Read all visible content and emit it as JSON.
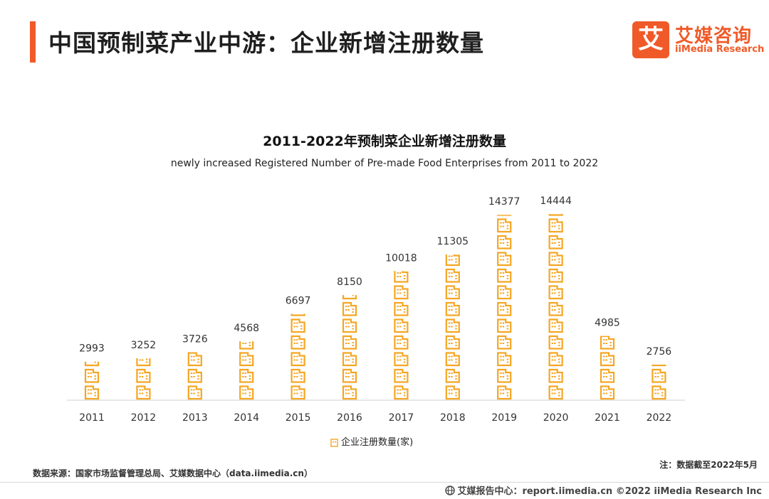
{
  "header": {
    "title": "中国预制菜产业中游：企业新增注册数量",
    "logo_mark": "艾",
    "logo_cn": "艾媒咨询",
    "logo_en": "iiMedia Research"
  },
  "colors": {
    "accent": "#f05a28",
    "bar": "#f5a623",
    "axis": "#cfcfcf"
  },
  "chart_data": {
    "type": "bar",
    "title": "2011-2022年预制菜企业新增注册数量",
    "subtitle": "newly increased Registered Number of Pre-made Food Enterprises from 2011 to 2022",
    "categories": [
      "2011",
      "2012",
      "2013",
      "2014",
      "2015",
      "2016",
      "2017",
      "2018",
      "2019",
      "2020",
      "2021",
      "2022"
    ],
    "series": [
      {
        "name": "企业注册数量(家)",
        "values": [
          2993,
          3252,
          3726,
          4568,
          6697,
          8150,
          10018,
          11305,
          14377,
          14444,
          4985,
          2756
        ]
      }
    ],
    "ylim": [
      0,
      16000
    ],
    "xlabel": "",
    "ylabel": "",
    "legend": "bottom-center",
    "grid": false
  },
  "footer": {
    "source": "数据来源：国家市场监督管理总局、艾媒数据中心（data.iimedia.cn）",
    "note": "注：数据截至2022年5月",
    "copyright": "艾媒报告中心：report.iimedia.cn  ©2022  iiMedia Research  Inc"
  }
}
